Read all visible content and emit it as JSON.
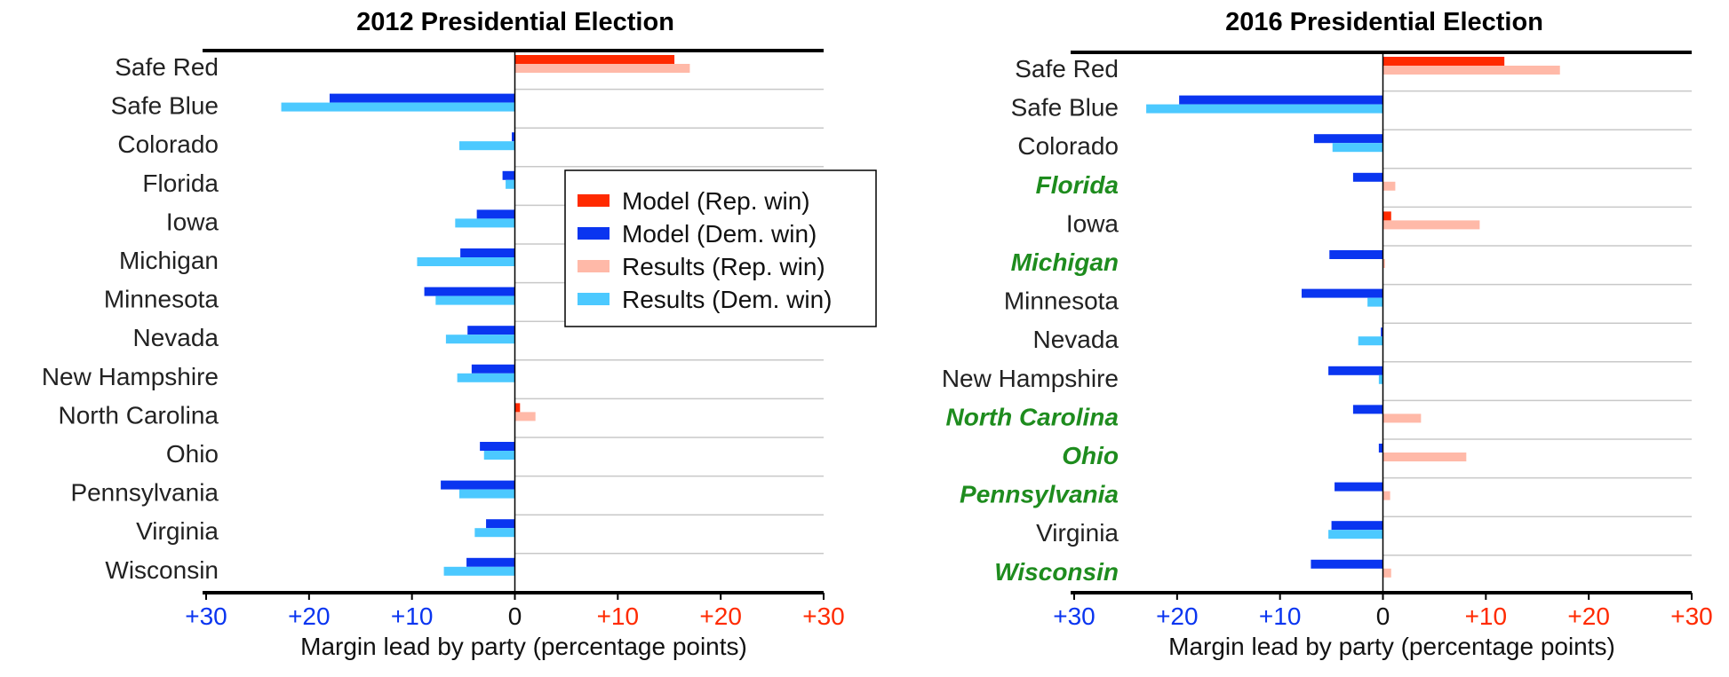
{
  "colors": {
    "model_rep": "#ff2a00",
    "model_dem": "#0a35f0",
    "results_rep": "#ffb9a8",
    "results_dem": "#4cc9ff",
    "highlight": "#1e8c1e",
    "tick_dem": "#0a35f0",
    "tick_rep": "#ff2a00",
    "tick_zero": "#111111"
  },
  "legend": {
    "entries": [
      {
        "label": "Model (Rep. win)",
        "color_key": "model_rep"
      },
      {
        "label": "Model (Dem. win)",
        "color_key": "model_dem"
      },
      {
        "label": "Results (Rep. win)",
        "color_key": "results_rep"
      },
      {
        "label": "Results (Dem. win)",
        "color_key": "results_dem"
      }
    ]
  },
  "chart_data": [
    {
      "type": "bar",
      "orientation": "horizontal",
      "title": "2012 Presidential Election",
      "xlabel": "Margin lead by party (percentage points)",
      "xlim": [
        -30,
        30
      ],
      "xticks": [
        -30,
        -20,
        -10,
        0,
        10,
        20,
        30
      ],
      "xtick_labels": [
        "+30",
        "+20",
        "+10",
        "0",
        "+10",
        "+20",
        "+30"
      ],
      "sign_convention": "negative = Democratic lead, positive = Republican lead",
      "categories": [
        "Safe Red",
        "Safe Blue",
        "Colorado",
        "Florida",
        "Iowa",
        "Michigan",
        "Minnesota",
        "Nevada",
        "New Hampshire",
        "North Carolina",
        "Ohio",
        "Pennsylvania",
        "Virginia",
        "Wisconsin"
      ],
      "highlighted": [],
      "series": [
        {
          "name": "Model",
          "values": [
            15.5,
            -18,
            -0.3,
            -1.2,
            -3.7,
            -5.3,
            -8.8,
            -4.6,
            -4.2,
            0.5,
            -3.4,
            -7.2,
            -2.8,
            -4.7
          ]
        },
        {
          "name": "Results",
          "values": [
            17,
            -22.7,
            -5.4,
            -0.9,
            -5.8,
            -9.5,
            -7.7,
            -6.7,
            -5.6,
            2.0,
            -3.0,
            -5.4,
            -3.9,
            -6.9
          ]
        }
      ],
      "grid": true,
      "legend_position": "inside-right"
    },
    {
      "type": "bar",
      "orientation": "horizontal",
      "title": "2016 Presidential Election",
      "xlabel": "Margin lead by party (percentage points)",
      "xlim": [
        -30,
        30
      ],
      "xticks": [
        -30,
        -20,
        -10,
        0,
        10,
        20,
        30
      ],
      "xtick_labels": [
        "+30",
        "+20",
        "+10",
        "0",
        "+10",
        "+20",
        "+30"
      ],
      "sign_convention": "negative = Democratic lead, positive = Republican lead",
      "categories": [
        "Safe Red",
        "Safe Blue",
        "Colorado",
        "Florida",
        "Iowa",
        "Michigan",
        "Minnesota",
        "Nevada",
        "New Hampshire",
        "North Carolina",
        "Ohio",
        "Pennsylvania",
        "Virginia",
        "Wisconsin"
      ],
      "highlighted": [
        "Florida",
        "Michigan",
        "North Carolina",
        "Ohio",
        "Pennsylvania",
        "Wisconsin"
      ],
      "series": [
        {
          "name": "Model",
          "values": [
            11.8,
            -19.8,
            -6.7,
            -2.9,
            0.8,
            -5.2,
            -7.9,
            -0.2,
            -5.3,
            -2.9,
            -0.4,
            -4.7,
            -5.0,
            -7.0
          ]
        },
        {
          "name": "Results",
          "values": [
            17.2,
            -23.0,
            -4.9,
            1.2,
            9.4,
            0.2,
            -1.5,
            -2.4,
            -0.4,
            3.7,
            8.1,
            0.7,
            -5.3,
            0.8
          ]
        }
      ],
      "grid": true,
      "legend_position": "none"
    }
  ]
}
